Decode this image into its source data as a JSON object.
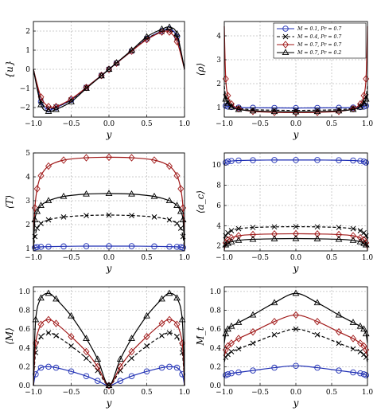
{
  "colors": {
    "m01": "#1f2fb4",
    "m04": "#000000",
    "m07pr07": "#a01818",
    "m07pr02": "#000000"
  },
  "legend": [
    {
      "series": "m01",
      "label": "M = 0.1, Pr = 0.7",
      "marker": "circle",
      "dash": "solid"
    },
    {
      "series": "m04",
      "label": "M = 0.4, Pr = 0.7",
      "marker": "cross",
      "dash": "dashed"
    },
    {
      "series": "m07pr07",
      "label": "M = 0.7, Pr = 0.7",
      "marker": "diamond",
      "dash": "solid"
    },
    {
      "series": "m07pr02",
      "label": "M = 0.7, Pr = 0.2",
      "marker": "triangle",
      "dash": "solid"
    }
  ],
  "chart_data": [
    {
      "type": "line",
      "ylabel": "{u}",
      "xlabel": "y",
      "xlim": [
        -1,
        1
      ],
      "ylim": [
        -2.5,
        2.5
      ],
      "xticks": [
        -1.0,
        -0.5,
        0.0,
        0.5,
        1.0
      ],
      "yticks": [
        -2,
        -1,
        0,
        1,
        2
      ],
      "xtick_labels": [
        "−1.0",
        "−0.5",
        "0.0",
        "0.5",
        "1.0"
      ],
      "ytick_labels": [
        "−2",
        "−1",
        "0",
        "1",
        "2"
      ],
      "x": [
        -1.0,
        -0.9,
        -0.8,
        -0.7,
        -0.5,
        -0.3,
        -0.1,
        0.0,
        0.1,
        0.3,
        0.5,
        0.7,
        0.8,
        0.9,
        1.0
      ],
      "series": [
        {
          "id": "m01",
          "values": [
            0.0,
            -1.7,
            -2.1,
            -2.0,
            -1.6,
            -0.95,
            -0.32,
            0.0,
            0.32,
            0.95,
            1.6,
            2.0,
            2.1,
            1.7,
            0.0
          ]
        },
        {
          "id": "m04",
          "values": [
            0.0,
            -1.65,
            -2.05,
            -1.97,
            -1.6,
            -0.95,
            -0.32,
            0.0,
            0.32,
            0.95,
            1.6,
            1.97,
            2.05,
            1.65,
            0.0
          ]
        },
        {
          "id": "m07pr07",
          "values": [
            0.0,
            -1.45,
            -1.95,
            -1.95,
            -1.55,
            -0.95,
            -0.32,
            0.0,
            0.32,
            0.95,
            1.55,
            1.95,
            1.95,
            1.45,
            0.0
          ]
        },
        {
          "id": "m07pr02",
          "values": [
            0.0,
            -1.85,
            -2.2,
            -2.1,
            -1.7,
            -1.0,
            -0.34,
            0.0,
            0.34,
            1.0,
            1.7,
            2.1,
            2.2,
            1.85,
            0.0
          ]
        }
      ]
    },
    {
      "type": "line",
      "ylabel": "⟨ρ⟩",
      "xlabel": "y",
      "xlim": [
        -1,
        1
      ],
      "ylim": [
        0.6,
        4.6
      ],
      "xticks": [
        -1.0,
        -0.5,
        0.0,
        0.5,
        1.0
      ],
      "yticks": [
        1,
        2,
        3,
        4
      ],
      "xtick_labels": [
        "−1.0",
        "−0.5",
        "0.0",
        "0.5",
        "1.0"
      ],
      "ytick_labels": [
        "1",
        "2",
        "3",
        "4"
      ],
      "legend_position": "top-right",
      "x": [
        -1.0,
        -0.98,
        -0.95,
        -0.9,
        -0.8,
        -0.6,
        -0.3,
        0.0,
        0.3,
        0.6,
        0.8,
        0.9,
        0.95,
        0.98,
        1.0
      ],
      "series": [
        {
          "id": "m01",
          "values": [
            1.12,
            1.07,
            1.04,
            1.02,
            1.0,
            0.99,
            0.985,
            0.98,
            0.985,
            0.99,
            1.0,
            1.02,
            1.04,
            1.07,
            1.12
          ]
        },
        {
          "id": "m04",
          "values": [
            1.9,
            1.45,
            1.22,
            1.07,
            0.97,
            0.91,
            0.89,
            0.88,
            0.89,
            0.91,
            0.97,
            1.07,
            1.22,
            1.45,
            1.9
          ]
        },
        {
          "id": "m07pr07",
          "values": [
            4.4,
            2.2,
            1.5,
            1.15,
            0.95,
            0.84,
            0.8,
            0.79,
            0.8,
            0.84,
            0.95,
            1.15,
            1.5,
            2.2,
            4.4
          ]
        },
        {
          "id": "m07pr02",
          "values": [
            1.6,
            1.35,
            1.18,
            1.02,
            0.92,
            0.86,
            0.83,
            0.82,
            0.83,
            0.86,
            0.92,
            1.02,
            1.18,
            1.35,
            1.6
          ]
        }
      ]
    },
    {
      "type": "line",
      "ylabel": "⟨T⟩",
      "xlabel": "y",
      "xlim": [
        -1,
        1
      ],
      "ylim": [
        0.9,
        5.0
      ],
      "xticks": [
        -1.0,
        -0.5,
        0.0,
        0.5,
        1.0
      ],
      "yticks": [
        1,
        2,
        3,
        4,
        5
      ],
      "xtick_labels": [
        "−1.0",
        "−0.5",
        "0.0",
        "0.5",
        "1.0"
      ],
      "ytick_labels": [
        "1",
        "2",
        "3",
        "4",
        "5"
      ],
      "x": [
        -1.0,
        -0.98,
        -0.95,
        -0.9,
        -0.8,
        -0.6,
        -0.3,
        0.0,
        0.3,
        0.6,
        0.8,
        0.9,
        0.95,
        0.98,
        1.0
      ],
      "series": [
        {
          "id": "m01",
          "values": [
            1.0,
            1.04,
            1.06,
            1.07,
            1.08,
            1.09,
            1.1,
            1.1,
            1.1,
            1.09,
            1.08,
            1.07,
            1.06,
            1.04,
            1.0
          ]
        },
        {
          "id": "m04",
          "values": [
            1.0,
            1.5,
            1.85,
            2.05,
            2.2,
            2.32,
            2.38,
            2.4,
            2.38,
            2.32,
            2.2,
            2.05,
            1.85,
            1.5,
            1.0
          ]
        },
        {
          "id": "m07pr07",
          "values": [
            1.0,
            2.7,
            3.5,
            4.05,
            4.45,
            4.7,
            4.8,
            4.82,
            4.8,
            4.7,
            4.45,
            4.05,
            3.5,
            2.7,
            1.0
          ]
        },
        {
          "id": "m07pr02",
          "values": [
            1.0,
            2.2,
            2.55,
            2.8,
            3.0,
            3.18,
            3.28,
            3.3,
            3.28,
            3.18,
            3.0,
            2.8,
            2.55,
            2.2,
            1.0
          ]
        }
      ]
    },
    {
      "type": "line",
      "ylabel": "⟨a_c⟩",
      "xlabel": "y",
      "xlim": [
        -1,
        1
      ],
      "ylim": [
        1.5,
        11.2
      ],
      "xticks": [
        -1.0,
        -0.5,
        0.0,
        0.5,
        1.0
      ],
      "yticks": [
        2,
        4,
        6,
        8,
        10
      ],
      "xtick_labels": [
        "−1.0",
        "−0.5",
        "0.0",
        "0.5",
        "1.0"
      ],
      "ytick_labels": [
        "2",
        "4",
        "6",
        "8",
        "10"
      ],
      "x": [
        -1.0,
        -0.98,
        -0.95,
        -0.9,
        -0.8,
        -0.6,
        -0.3,
        0.0,
        0.3,
        0.6,
        0.8,
        0.9,
        0.95,
        0.98,
        1.0
      ],
      "series": [
        {
          "id": "m01",
          "values": [
            10.0,
            10.25,
            10.35,
            10.4,
            10.45,
            10.48,
            10.5,
            10.5,
            10.5,
            10.48,
            10.45,
            10.4,
            10.35,
            10.25,
            10.0
          ]
        },
        {
          "id": "m04",
          "values": [
            2.6,
            3.0,
            3.3,
            3.5,
            3.7,
            3.82,
            3.88,
            3.9,
            3.88,
            3.82,
            3.7,
            3.5,
            3.3,
            3.0,
            2.6
          ]
        },
        {
          "id": "m07pr07",
          "values": [
            1.6,
            2.3,
            2.6,
            2.8,
            3.0,
            3.12,
            3.18,
            3.2,
            3.18,
            3.12,
            3.0,
            2.8,
            2.6,
            2.3,
            1.6
          ]
        },
        {
          "id": "m07pr02",
          "values": [
            1.9,
            2.1,
            2.25,
            2.4,
            2.55,
            2.65,
            2.7,
            2.72,
            2.7,
            2.65,
            2.55,
            2.4,
            2.25,
            2.1,
            1.9
          ]
        }
      ]
    },
    {
      "type": "line",
      "ylabel": "⟨M⟩",
      "xlabel": "y",
      "xlim": [
        -1,
        1
      ],
      "ylim": [
        0.0,
        1.05
      ],
      "xticks": [
        -1.0,
        -0.5,
        0.0,
        0.5,
        1.0
      ],
      "yticks": [
        0.0,
        0.2,
        0.4,
        0.6,
        0.8,
        1.0
      ],
      "xtick_labels": [
        "−1.0",
        "−0.5",
        "0.0",
        "0.5",
        "1.0"
      ],
      "ytick_labels": [
        "0.0",
        "0.2",
        "0.4",
        "0.6",
        "0.8",
        "1.0"
      ],
      "x": [
        -1.0,
        -0.97,
        -0.9,
        -0.8,
        -0.7,
        -0.5,
        -0.3,
        -0.15,
        0.0,
        0.15,
        0.3,
        0.5,
        0.7,
        0.8,
        0.9,
        0.97,
        1.0
      ],
      "series": [
        {
          "id": "m01",
          "values": [
            0.0,
            0.12,
            0.19,
            0.2,
            0.19,
            0.15,
            0.1,
            0.05,
            0.0,
            0.05,
            0.1,
            0.15,
            0.19,
            0.2,
            0.19,
            0.12,
            0.0
          ]
        },
        {
          "id": "m04",
          "values": [
            0.0,
            0.35,
            0.52,
            0.56,
            0.53,
            0.42,
            0.29,
            0.16,
            0.0,
            0.16,
            0.29,
            0.42,
            0.53,
            0.56,
            0.52,
            0.35,
            0.0
          ]
        },
        {
          "id": "m07pr07",
          "values": [
            0.0,
            0.45,
            0.65,
            0.7,
            0.66,
            0.52,
            0.36,
            0.2,
            0.0,
            0.2,
            0.36,
            0.52,
            0.66,
            0.7,
            0.65,
            0.45,
            0.0
          ]
        },
        {
          "id": "m07pr02",
          "values": [
            0.0,
            0.7,
            0.93,
            0.98,
            0.92,
            0.74,
            0.5,
            0.28,
            0.0,
            0.28,
            0.5,
            0.74,
            0.92,
            0.98,
            0.93,
            0.7,
            0.0
          ]
        }
      ]
    },
    {
      "type": "line",
      "ylabel": "M_t",
      "xlabel": "y",
      "xlim": [
        -1,
        1
      ],
      "ylim": [
        0.0,
        1.05
      ],
      "xticks": [
        -1.0,
        -0.5,
        0.0,
        0.5,
        1.0
      ],
      "yticks": [
        0.0,
        0.2,
        0.4,
        0.6,
        0.8,
        1.0
      ],
      "xtick_labels": [
        "−1.0",
        "−0.5",
        "0.0",
        "0.5",
        "1.0"
      ],
      "ytick_labels": [
        "0.0",
        "0.2",
        "0.4",
        "0.6",
        "0.8",
        "1.0"
      ],
      "x": [
        -1.0,
        -0.98,
        -0.95,
        -0.9,
        -0.8,
        -0.6,
        -0.3,
        0.0,
        0.3,
        0.6,
        0.8,
        0.9,
        0.95,
        0.98,
        1.0
      ],
      "series": [
        {
          "id": "m01",
          "values": [
            0.08,
            0.11,
            0.12,
            0.13,
            0.14,
            0.16,
            0.19,
            0.21,
            0.19,
            0.16,
            0.14,
            0.13,
            0.12,
            0.11,
            0.08
          ]
        },
        {
          "id": "m04",
          "values": [
            0.25,
            0.3,
            0.33,
            0.36,
            0.39,
            0.45,
            0.54,
            0.6,
            0.54,
            0.45,
            0.39,
            0.36,
            0.33,
            0.3,
            0.25
          ]
        },
        {
          "id": "m07pr07",
          "values": [
            0.3,
            0.38,
            0.42,
            0.45,
            0.5,
            0.57,
            0.68,
            0.75,
            0.68,
            0.57,
            0.5,
            0.45,
            0.42,
            0.38,
            0.3
          ]
        },
        {
          "id": "m07pr02",
          "values": [
            0.45,
            0.55,
            0.6,
            0.63,
            0.67,
            0.75,
            0.88,
            0.98,
            0.88,
            0.75,
            0.67,
            0.63,
            0.6,
            0.55,
            0.45
          ]
        }
      ]
    }
  ]
}
